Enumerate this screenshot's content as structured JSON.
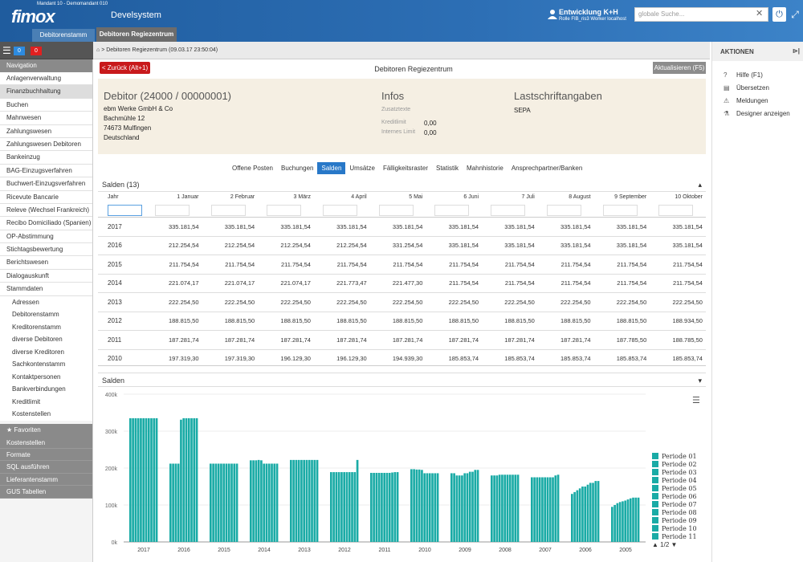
{
  "header": {
    "mandant": "Mandant 10 - Demomandant 010",
    "logo": "fimox",
    "system": "Develsystem",
    "user_name": "Entwicklung K+H",
    "user_role": "Rolle FIB_ris3 Worker localhost",
    "search_placeholder": "globale Suche...",
    "tab_debitorenstamm": "Debitorenstamm",
    "tab_regiezentrum": "Debitoren Regiezentrum"
  },
  "sidebar": {
    "badge_blue": "0",
    "badge_red": "0",
    "nav_title": "Navigation",
    "items": [
      "Anlagenverwaltung",
      "Finanzbuchhaltung",
      "Buchen",
      "Mahnwesen",
      "Zahlungswesen",
      "Zahlungswesen Debitoren",
      "Bankeinzug",
      "BAG-Einzugsverfahren",
      "Buchwert-Einzugsverfahren",
      "Ricevute Bancarie",
      "Releve (Wechsel Frankreich)",
      "Recibo Domiciliado (Spanien)",
      "OP-Abstimmung",
      "Stichtagsbewertung",
      "Berichtswesen",
      "Dialogauskunft",
      "Stammdaten"
    ],
    "subitems": [
      "Adressen",
      "Debitorenstamm",
      "Kreditorenstamm",
      "diverse Debitoren",
      "diverse Kreditoren",
      "Sachkontenstamm",
      "Kontaktpersonen",
      "Bankverbindungen",
      "Kreditlimit",
      "Kostenstellen"
    ],
    "fav_title": "Favoriten",
    "favorites": [
      "Kostenstellen",
      "Formate",
      "SQL ausführen",
      "Lieferantenstamm",
      "GUS Tabellen"
    ]
  },
  "breadcrumb": "> Debitoren Regiezentrum (09.03.17 23:50:04)",
  "page": {
    "back": "< Zurück (Alt+1)",
    "title": "Debitoren Regiezentrum",
    "refresh": "Aktualisieren (F5)"
  },
  "debitor": {
    "heading": "Debitor  (24000 / 00000001)",
    "line1": "ebm Werke GmbH & Co",
    "line2": "Bachmühle 12",
    "line3": "74673 Mulfingen",
    "line4": "Deutschland"
  },
  "infos": {
    "heading": "Infos",
    "zusatz": "Zusatztexte",
    "kreditlimit_label": "Kreditlimit",
    "kreditlimit": "0,00",
    "internes_label": "Internes Limit",
    "internes": "0,00"
  },
  "lastschrift": {
    "heading": "Lastschriftangaben",
    "value": "SEPA"
  },
  "tabs": [
    "Offene Posten",
    "Buchungen",
    "Salden",
    "Umsätze",
    "Fälligkeitsraster",
    "Statistik",
    "Mahnhistorie",
    "Ansprechpartner/Banken"
  ],
  "table": {
    "title": "Salden (13)",
    "columns": [
      "Jahr",
      "1 Januar",
      "2 Februar",
      "3 März",
      "4 April",
      "5 Mai",
      "6 Juni",
      "7 Juli",
      "8 August",
      "9 September",
      "10 Oktober"
    ],
    "rows": [
      [
        "2017",
        "335.181,54",
        "335.181,54",
        "335.181,54",
        "335.181,54",
        "335.181,54",
        "335.181,54",
        "335.181,54",
        "335.181,54",
        "335.181,54",
        "335.181,54"
      ],
      [
        "2016",
        "212.254,54",
        "212.254,54",
        "212.254,54",
        "212.254,54",
        "331.254,54",
        "335.181,54",
        "335.181,54",
        "335.181,54",
        "335.181,54",
        "335.181,54"
      ],
      [
        "2015",
        "211.754,54",
        "211.754,54",
        "211.754,54",
        "211.754,54",
        "211.754,54",
        "211.754,54",
        "211.754,54",
        "211.754,54",
        "211.754,54",
        "211.754,54"
      ],
      [
        "2014",
        "221.074,17",
        "221.074,17",
        "221.074,17",
        "221.773,47",
        "221.477,30",
        "211.754,54",
        "211.754,54",
        "211.754,54",
        "211.754,54",
        "211.754,54"
      ],
      [
        "2013",
        "222.254,50",
        "222.254,50",
        "222.254,50",
        "222.254,50",
        "222.254,50",
        "222.254,50",
        "222.254,50",
        "222.254,50",
        "222.254,50",
        "222.254,50"
      ],
      [
        "2012",
        "188.815,50",
        "188.815,50",
        "188.815,50",
        "188.815,50",
        "188.815,50",
        "188.815,50",
        "188.815,50",
        "188.815,50",
        "188.815,50",
        "188.934,50"
      ],
      [
        "2011",
        "187.281,74",
        "187.281,74",
        "187.281,74",
        "187.281,74",
        "187.281,74",
        "187.281,74",
        "187.281,74",
        "187.281,74",
        "187.785,50",
        "188.785,50"
      ],
      [
        "2010",
        "197.319,30",
        "197.319,30",
        "196.129,30",
        "196.129,30",
        "194.939,30",
        "185.853,74",
        "185.853,74",
        "185.853,74",
        "185.853,74",
        "185.853,74"
      ]
    ]
  },
  "chart_panel_title": "Salden",
  "chart_data": {
    "type": "bar",
    "ylim": [
      0,
      400000
    ],
    "yticks": [
      "0k",
      "100k",
      "200k",
      "300k",
      "400k"
    ],
    "categories": [
      "2017",
      "2016",
      "2015",
      "2014",
      "2013",
      "2012",
      "2011",
      "2010",
      "2009",
      "2008",
      "2007",
      "2006",
      "2005"
    ],
    "series_names": [
      "Periode 01",
      "Periode 02",
      "Periode 03",
      "Periode 04",
      "Periode 05",
      "Periode 06",
      "Periode 07",
      "Periode 08",
      "Periode 09",
      "Periode 10",
      "Periode 11"
    ],
    "values": [
      [
        335000,
        335000,
        335000,
        335000,
        335000,
        335000,
        335000,
        335000,
        335000,
        335000,
        335000
      ],
      [
        212000,
        212000,
        212000,
        212000,
        331000,
        335000,
        335000,
        335000,
        335000,
        335000,
        335000
      ],
      [
        212000,
        212000,
        212000,
        212000,
        212000,
        212000,
        212000,
        212000,
        212000,
        212000,
        212000
      ],
      [
        221000,
        221000,
        221000,
        222000,
        221000,
        212000,
        212000,
        212000,
        212000,
        212000,
        212000
      ],
      [
        222000,
        222000,
        222000,
        222000,
        222000,
        222000,
        222000,
        222000,
        222000,
        222000,
        222000
      ],
      [
        189000,
        189000,
        189000,
        189000,
        189000,
        189000,
        189000,
        189000,
        189000,
        189000,
        222000
      ],
      [
        187000,
        187000,
        187000,
        187000,
        187000,
        187000,
        187000,
        187000,
        188000,
        189000,
        189000
      ],
      [
        197000,
        197000,
        196000,
        196000,
        195000,
        186000,
        186000,
        186000,
        186000,
        186000,
        186000
      ],
      [
        186000,
        186000,
        180000,
        180000,
        180000,
        186000,
        186000,
        190000,
        190000,
        195000,
        195000
      ],
      [
        180000,
        180000,
        180000,
        182000,
        182000,
        182000,
        182000,
        182000,
        182000,
        182000,
        182000
      ],
      [
        175000,
        175000,
        175000,
        175000,
        175000,
        175000,
        175000,
        175000,
        175000,
        180000,
        182000
      ],
      [
        130000,
        135000,
        140000,
        145000,
        150000,
        150000,
        155000,
        160000,
        160000,
        165000,
        165000
      ],
      [
        95000,
        100000,
        105000,
        108000,
        110000,
        112000,
        115000,
        118000,
        120000,
        120000,
        120000
      ]
    ],
    "bar_color": "#1aaba6",
    "pager": "1/2"
  },
  "actions": {
    "title": "AKTIONEN",
    "items": [
      "Hilfe (F1)",
      "Übersetzen",
      "Meldungen",
      "Designer anzeigen"
    ]
  }
}
